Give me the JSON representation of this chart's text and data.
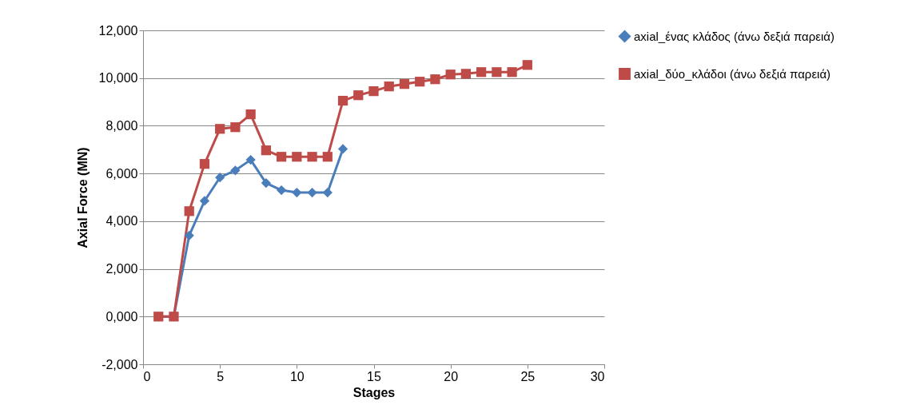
{
  "chart_data": {
    "type": "line",
    "xlabel": "Stages",
    "ylabel": "Axial Force (MN)",
    "xlim": [
      0,
      30
    ],
    "xticks": [
      0,
      5,
      10,
      15,
      20,
      25,
      30
    ],
    "ylim": [
      -2000,
      12000
    ],
    "yticks": [
      {
        "value": -2000,
        "label": "-2,000"
      },
      {
        "value": 0,
        "label": "0,000"
      },
      {
        "value": 2000,
        "label": "2,000"
      },
      {
        "value": 4000,
        "label": "4,000"
      },
      {
        "value": 6000,
        "label": "6,000"
      },
      {
        "value": 8000,
        "label": "8,000"
      },
      {
        "value": 10000,
        "label": "10,000"
      },
      {
        "value": 12000,
        "label": "12,000"
      }
    ],
    "grid": "y",
    "legend": "right",
    "series": [
      {
        "name": "axial_ένας κλάδος (άνω δεξιά παρειά)",
        "color": "#4a7ebb",
        "marker": "diamond",
        "x": [
          1,
          2,
          3,
          4,
          5,
          6,
          7,
          8,
          9,
          10,
          11,
          12,
          13
        ],
        "values": [
          0,
          0,
          3400,
          4850,
          5830,
          6130,
          6570,
          5600,
          5300,
          5200,
          5200,
          5200,
          7030
        ]
      },
      {
        "name": "axial_δύο_κλάδοι (άνω δεξιά παρειά)",
        "color": "#be4b48",
        "marker": "square",
        "x": [
          1,
          2,
          3,
          4,
          5,
          6,
          7,
          8,
          9,
          10,
          11,
          12,
          13,
          14,
          15,
          16,
          17,
          18,
          19,
          20,
          21,
          22,
          23,
          24,
          25
        ],
        "values": [
          0,
          0,
          4420,
          6400,
          7870,
          7940,
          8480,
          6970,
          6700,
          6700,
          6700,
          6700,
          9050,
          9280,
          9450,
          9650,
          9750,
          9850,
          9950,
          10150,
          10180,
          10250,
          10250,
          10250,
          10550
        ]
      }
    ]
  }
}
